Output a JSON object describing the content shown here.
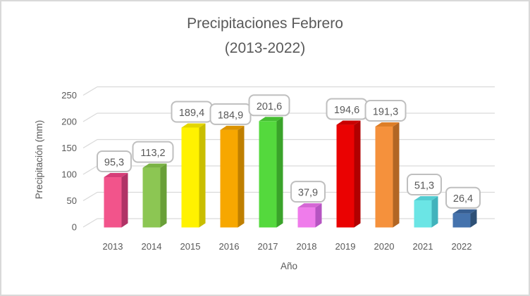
{
  "window": {
    "background_color": "#FFFFFF",
    "border_color": "#D9D9D9"
  },
  "chart_data": {
    "type": "bar",
    "style": "3d-column",
    "title_line1": "Precipitaciones Febrero",
    "title_line2": "(2013-2022)",
    "xlabel": "Año",
    "ylabel": "Precipitación (mm)",
    "categories": [
      "2013",
      "2014",
      "2015",
      "2016",
      "2017",
      "2018",
      "2019",
      "2020",
      "2021",
      "2022"
    ],
    "values": [
      95.3,
      113.2,
      189.4,
      184.9,
      201.6,
      37.9,
      194.6,
      191.3,
      51.3,
      26.4
    ],
    "value_labels": [
      "95,3",
      "113,2",
      "189,4",
      "184,9",
      "201,6",
      "37,9",
      "194,6",
      "191,3",
      "51,3",
      "26,4"
    ],
    "y_ticks": [
      0,
      50,
      100,
      150,
      200,
      250
    ],
    "ylim": [
      0,
      250
    ],
    "grid": true,
    "legend": "none",
    "gridline_color": "#D9D9D9",
    "text_color": "#595959",
    "callout": {
      "fill": "#FFFFFF",
      "border_color": "#BFBFBF"
    },
    "bar_colors": [
      {
        "front": "#F2548B",
        "side": "#B03366",
        "top": "#D63E78"
      },
      {
        "front": "#8CC653",
        "side": "#699F38",
        "top": "#7AB344"
      },
      {
        "front": "#FFF200",
        "side": "#C9BE00",
        "top": "#E3D600"
      },
      {
        "front": "#F7A700",
        "side": "#BF7F00",
        "top": "#DB9300"
      },
      {
        "front": "#54D93D",
        "side": "#3AA32A",
        "top": "#46BF32"
      },
      {
        "front": "#EF7CEB",
        "side": "#B654C2",
        "top": "#D467D4"
      },
      {
        "front": "#EA0202",
        "side": "#B00000",
        "top": "#C90000"
      },
      {
        "front": "#F5913C",
        "side": "#B26624",
        "top": "#DD7E28"
      },
      {
        "front": "#6BE5E5",
        "side": "#41B3BC",
        "top": "#54CDD2"
      },
      {
        "front": "#4573AD",
        "side": "#2E5076",
        "top": "#375F92"
      }
    ]
  }
}
